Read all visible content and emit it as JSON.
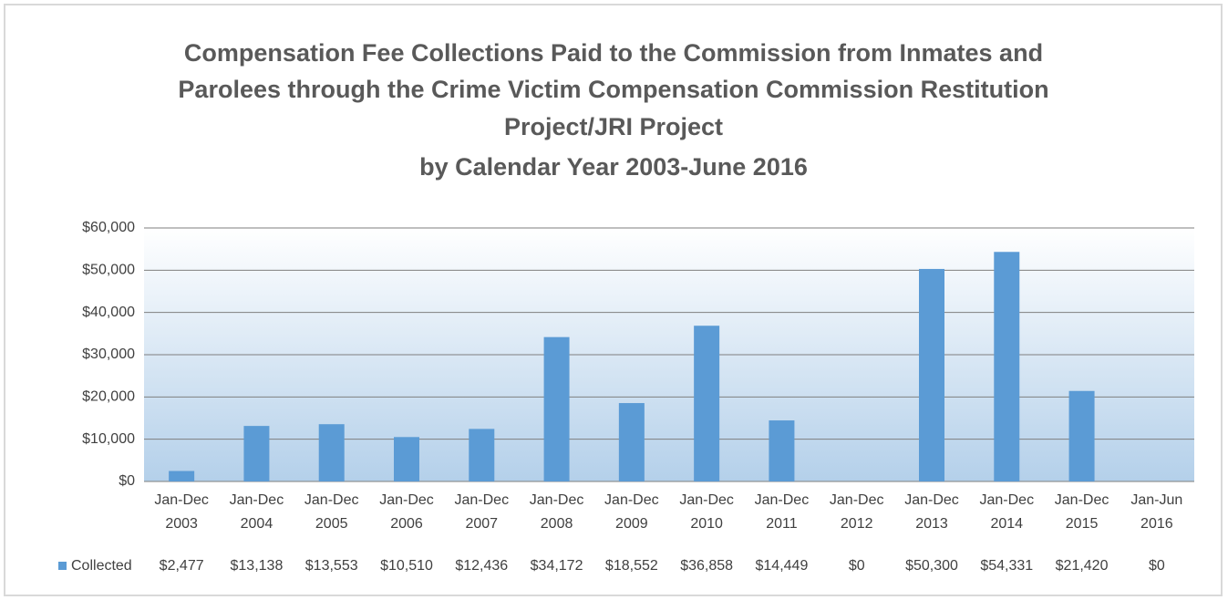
{
  "chart_data": {
    "type": "bar",
    "title": [
      "Compensation Fee Collections Paid to the Commission from Inmates and",
      "Parolees through the Crime Victim  Compensation Commission Restitution",
      "Project/JRI Project",
      "by Calendar Year 2003-June 2016"
    ],
    "categories": [
      "Jan-Dec 2003",
      "Jan-Dec 2004",
      "Jan-Dec 2005",
      "Jan-Dec 2006",
      "Jan-Dec 2007",
      "Jan-Dec 2008",
      "Jan-Dec 2009",
      "Jan-Dec 2010",
      "Jan-Dec 2011",
      "Jan-Dec 2012",
      "Jan-Dec 2013",
      "Jan-Dec 2014",
      "Jan-Dec 2015",
      "Jan-Jun 2016"
    ],
    "series": [
      {
        "name": "Collected",
        "color": "#5b9bd5",
        "values": [
          2477,
          13138,
          13553,
          10510,
          12436,
          34172,
          18552,
          36858,
          14449,
          0,
          50300,
          54331,
          21420,
          0
        ],
        "value_labels": [
          "$2,477",
          "$13,138",
          "$13,553",
          "$10,510",
          "$12,436",
          "$34,172",
          "$18,552",
          "$36,858",
          "$14,449",
          "$0",
          "$50,300",
          "$54,331",
          "$21,420",
          "$0"
        ]
      }
    ],
    "ylim": [
      0,
      60000
    ],
    "yticks": [
      {
        "value": 0,
        "label": "$0"
      },
      {
        "value": 10000,
        "label": "$10,000"
      },
      {
        "value": 20000,
        "label": "$20,000"
      },
      {
        "value": 30000,
        "label": "$30,000"
      },
      {
        "value": 40000,
        "label": "$40,000"
      },
      {
        "value": 50000,
        "label": "$50,000"
      },
      {
        "value": 60000,
        "label": "$60,000"
      }
    ],
    "grid": true
  }
}
